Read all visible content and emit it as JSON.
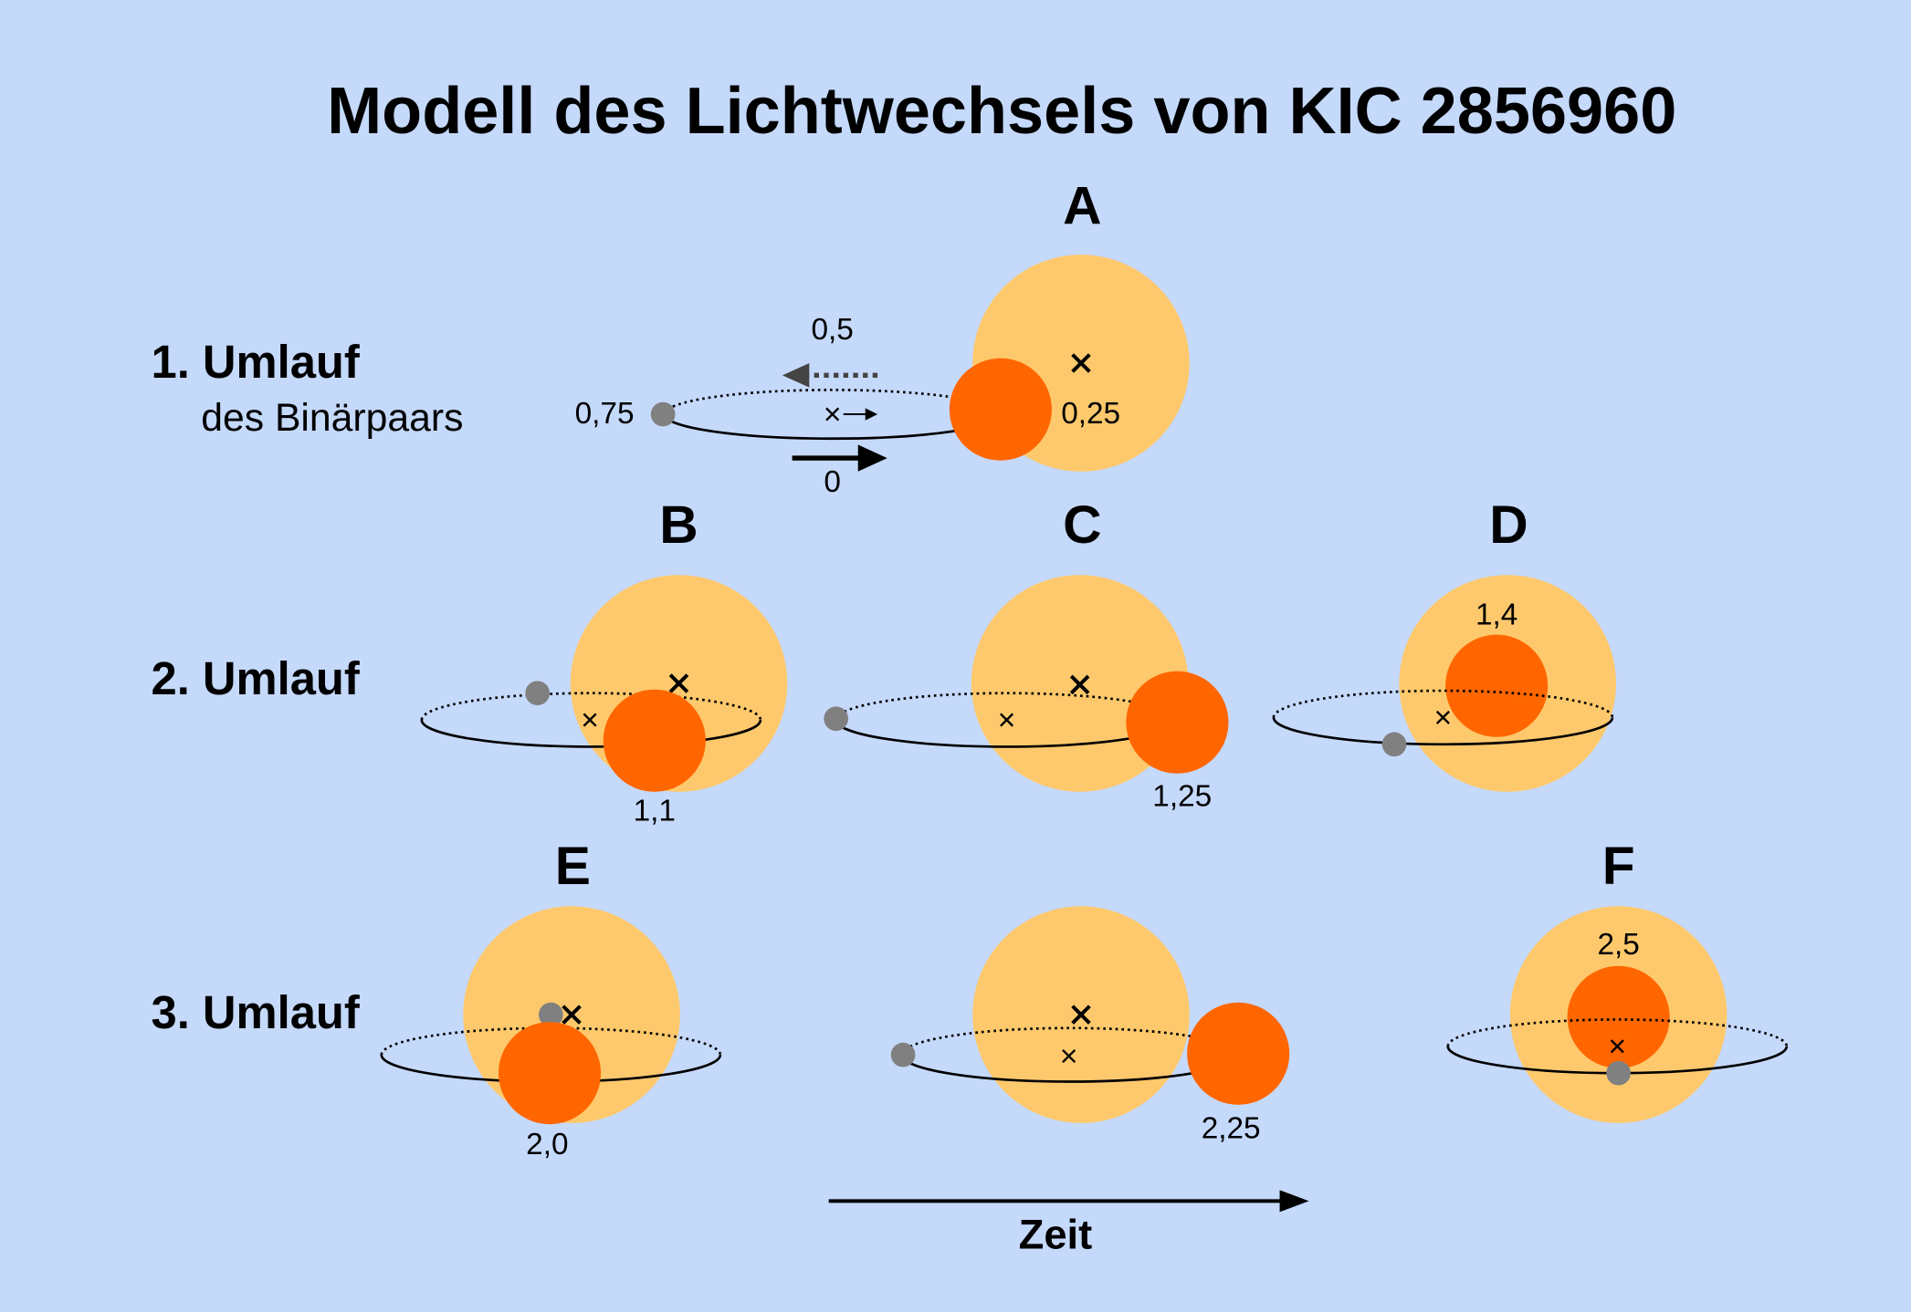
{
  "title": "Modell des Lichtwechsels von KIC 2856960",
  "rows": [
    {
      "label": "1. Umlauf",
      "sublabel": "des Binärpaars"
    },
    {
      "label": "2. Umlauf"
    },
    {
      "label": "3. Umlauf"
    }
  ],
  "panels": [
    {
      "label": "A"
    },
    {
      "label": "B"
    },
    {
      "label": "C"
    },
    {
      "label": "D"
    },
    {
      "label": "E"
    },
    {
      "label": "F"
    }
  ],
  "phase_labels": [
    "0,5",
    "0,75",
    "0,25",
    "0",
    "1,1",
    "1,25",
    "1,4",
    "2,0",
    "2,25",
    "2,5"
  ],
  "time_axis": "Zeit"
}
